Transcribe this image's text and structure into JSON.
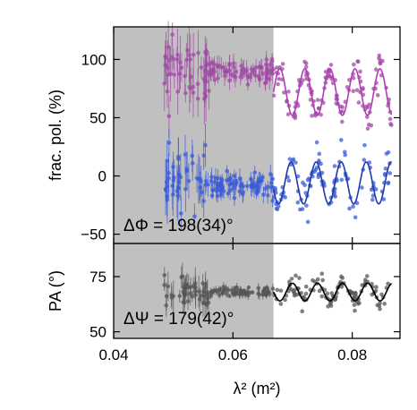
{
  "chart_data": [
    {
      "type": "scatter",
      "panel": "top",
      "xlabel": "λ² (m²)",
      "ylabel": "frac. pol. (%)",
      "xlim": [
        0.04,
        0.088
      ],
      "ylim": [
        -58,
        128
      ],
      "xticks": [
        0.04,
        0.06,
        0.08
      ],
      "xtick_labels": [
        "0.04",
        "0.06",
        "0.08"
      ],
      "yticks": [
        -50,
        0,
        50,
        100
      ],
      "ytick_labels": [
        "−50",
        "0",
        "50",
        "100"
      ],
      "shaded_region": {
        "x": [
          0.04,
          0.0668
        ],
        "color": "#c0c0c0"
      },
      "annotation": "ΔΦ = 198(34)°",
      "series": [
        {
          "kind": "points",
          "color": "#a24aa6",
          "model": {
            "offset": 72,
            "amplitude": 20,
            "period": 0.0042,
            "phase": 0.0
          }
        },
        {
          "kind": "points",
          "color": "#3a5cd8",
          "model": {
            "offset": -6,
            "amplitude": 18,
            "period": 0.0042,
            "phase": 3.4558
          }
        }
      ]
    },
    {
      "type": "scatter",
      "panel": "bottom",
      "xlabel": "λ² (m²)",
      "ylabel": "PA (°)",
      "xlim": [
        0.04,
        0.088
      ],
      "ylim": [
        47,
        90
      ],
      "xticks": [
        0.04,
        0.06,
        0.08
      ],
      "xtick_labels": [
        "0.04",
        "0.06",
        "0.08"
      ],
      "yticks": [
        50,
        75
      ],
      "ytick_labels": [
        "50",
        "75"
      ],
      "shaded_region": {
        "x": [
          0.04,
          0.0668
        ],
        "color": "#c0c0c0"
      },
      "annotation": "ΔΨ = 179(42)°",
      "series": [
        {
          "kind": "points",
          "color": "#555555",
          "model": {
            "offset": 68,
            "amplitude": 4,
            "period": 0.0042,
            "phase": 3.1241
          }
        }
      ]
    }
  ]
}
